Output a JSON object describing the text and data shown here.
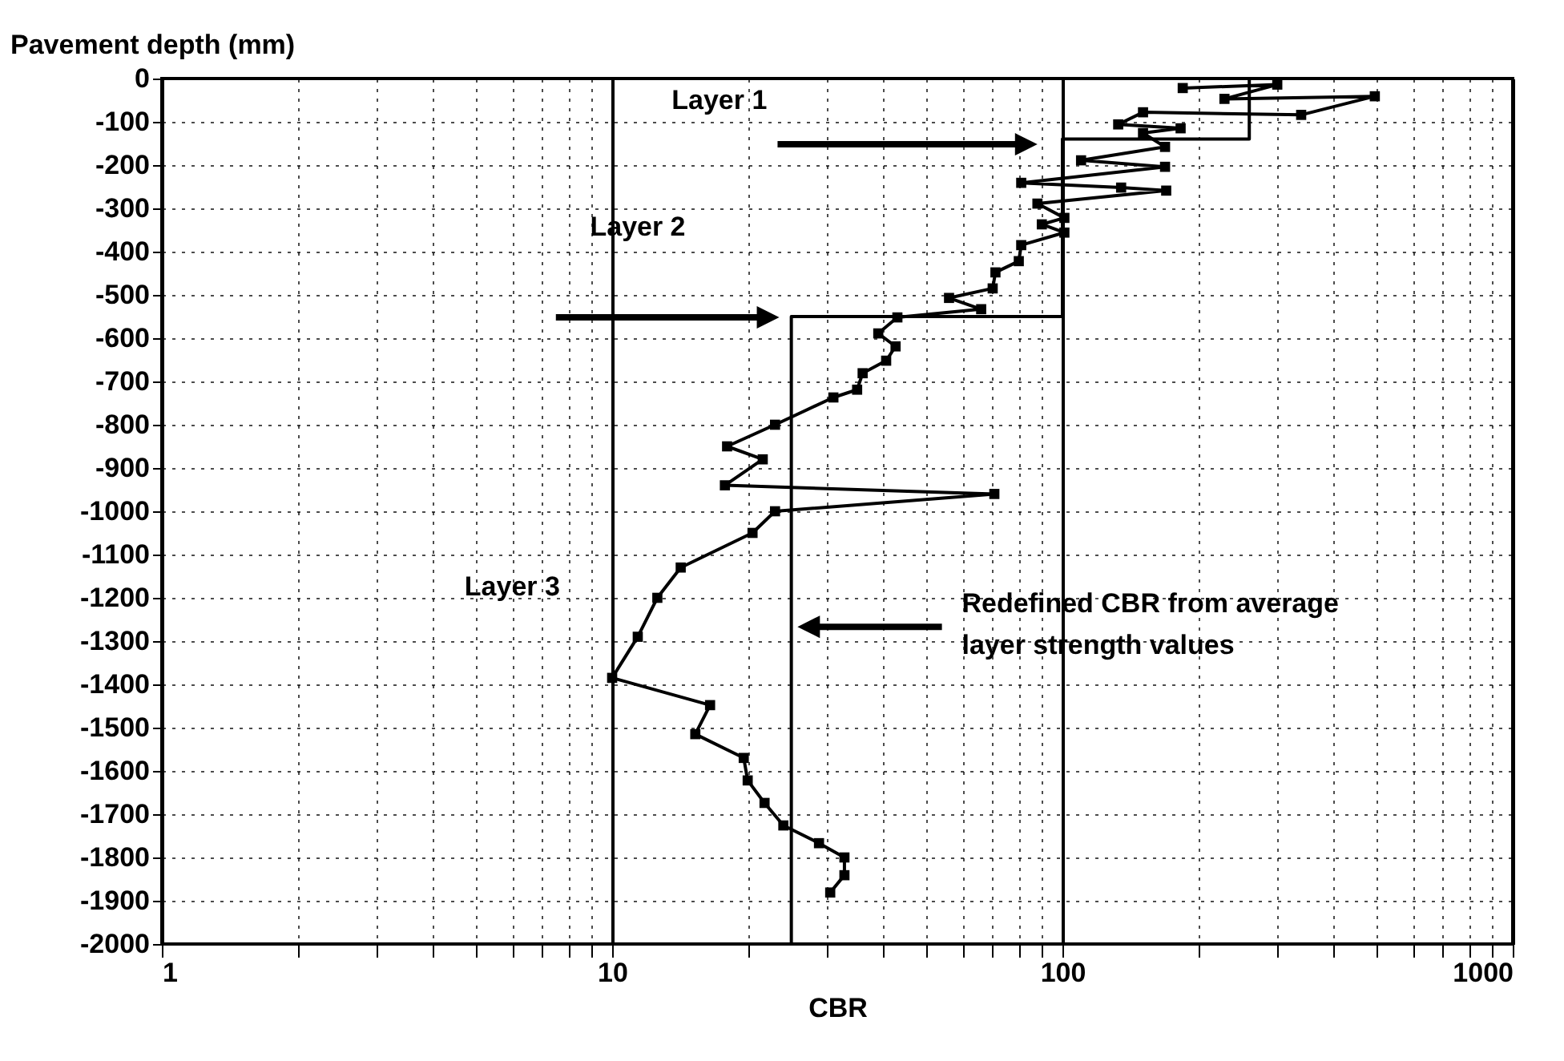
{
  "chart_data": {
    "type": "line",
    "xlabel": "CBR",
    "ylabel": "Pavement depth (mm)",
    "log": "x",
    "grid": true,
    "marker": "square",
    "line_style": "solid",
    "xlim": [
      1,
      1000
    ],
    "xticks": [
      1,
      {
        "value": 2,
        "label": null
      },
      {
        "value": 3,
        "label": null
      },
      {
        "value": 4,
        "label": null
      },
      {
        "value": 5,
        "label": null
      },
      {
        "value": 6,
        "label": null
      },
      {
        "value": 7,
        "label": null
      },
      {
        "value": 8,
        "label": null
      },
      {
        "value": 9,
        "label": null
      },
      10,
      {
        "value": 20,
        "label": null
      },
      {
        "value": 30,
        "label": null
      },
      {
        "value": 40,
        "label": null
      },
      {
        "value": 50,
        "label": null
      },
      {
        "value": 60,
        "label": null
      },
      {
        "value": 70,
        "label": null
      },
      {
        "value": 80,
        "label": null
      },
      {
        "value": 90,
        "label": null
      },
      100,
      {
        "value": 200,
        "label": null
      },
      {
        "value": 300,
        "label": null
      },
      {
        "value": 400,
        "label": null
      },
      {
        "value": 500,
        "label": null
      },
      {
        "value": 600,
        "label": null
      },
      {
        "value": 700,
        "label": null
      },
      {
        "value": 800,
        "label": null
      },
      {
        "value": 900,
        "label": null
      },
      1000
    ],
    "ylim": [
      -2000,
      0
    ],
    "yticks": [
      0,
      -100,
      -200,
      -300,
      -400,
      -500,
      -600,
      -700,
      -800,
      -900,
      -1000,
      -1100,
      -1200,
      -1300,
      -1400,
      -1500,
      -1600,
      -1700,
      -1800,
      -1900,
      -2000
    ],
    "series": [
      {
        "color": "#000000",
        "x": [
          185,
          300,
          229,
          494,
          339,
          151,
          133,
          183,
          151,
          169,
          110,
          169,
          81,
          135,
          170,
          88,
          101,
          90,
          101,
          81,
          80,
          71,
          70,
          56,
          66,
          43,
          39,
          42.6,
          40.6,
          36,
          35,
          31,
          23,
          18,
          21.6,
          17.8,
          70.6,
          23,
          20.5,
          14.2,
          12.6,
          11.4,
          10,
          16.5,
          15.3,
          19.6,
          20,
          21.8,
          24,
          28.8,
          32.8,
          32.8,
          30.5
        ],
        "values": [
          -22,
          -14,
          -47,
          -41,
          -84,
          -78,
          -106,
          -115,
          -126,
          -158,
          -189,
          -204,
          -241,
          -252,
          -259,
          -289,
          -322,
          -337,
          -356,
          -385,
          -422,
          -448,
          -485,
          -507,
          -533,
          -552,
          -589,
          -619,
          -652,
          -681,
          -719,
          -737,
          -800,
          -850,
          -880,
          -940,
          -960,
          -1000,
          -1050,
          -1130,
          -1200,
          -1290,
          -1385,
          -1448,
          -1515,
          -1570,
          -1622,
          -1674,
          -1726,
          -1767,
          -1800,
          -1841,
          -1881
        ]
      },
      {
        "color": "#000000",
        "marker": "none",
        "x": [
          260,
          260,
          100,
          100,
          25,
          25
        ],
        "values": [
          0,
          -140,
          -140,
          -550,
          -550,
          -2000
        ]
      }
    ],
    "annotations": [
      "Layer 1",
      "Layer 2",
      "Layer 3",
      "Redefined CBR from average\nlayer strength values"
    ]
  }
}
